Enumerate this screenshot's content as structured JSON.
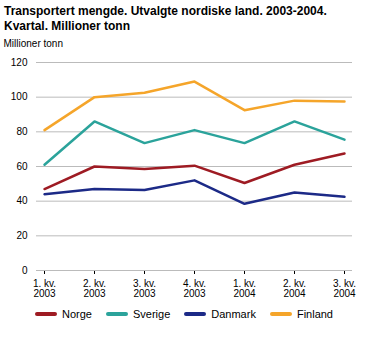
{
  "chart_data": {
    "type": "line",
    "title": "Transportert mengde. Utvalgte nordiske land. 2003-2004.",
    "subtitle": "Kvartal. Millioner tonn",
    "y_label": "Millioner tonn",
    "categories": [
      "1. kv. 2003",
      "2. kv. 2003",
      "3. kv. 2003",
      "4. kv. 2003",
      "1. kv. 2004",
      "2. kv. 2004",
      "3. kv. 2004"
    ],
    "series": [
      {
        "name": "Norge",
        "color": "#9e1b23",
        "values": [
          47,
          60,
          58.5,
          60.5,
          50.5,
          61,
          67.5
        ]
      },
      {
        "name": "Sverige",
        "color": "#2ba39b",
        "values": [
          61,
          86,
          73.5,
          81,
          73.5,
          86,
          75.5
        ]
      },
      {
        "name": "Danmark",
        "color": "#1c2a87",
        "values": [
          44,
          47,
          46.5,
          52,
          38.5,
          45,
          42.5
        ]
      },
      {
        "name": "Finland",
        "color": "#f5a52a",
        "values": [
          81,
          100,
          102.5,
          109,
          92.5,
          98,
          97.5
        ]
      }
    ],
    "ylim": [
      0,
      120
    ],
    "yticks": [
      0,
      20,
      40,
      60,
      80,
      100,
      120
    ],
    "grid": true,
    "legend": "bottom"
  }
}
